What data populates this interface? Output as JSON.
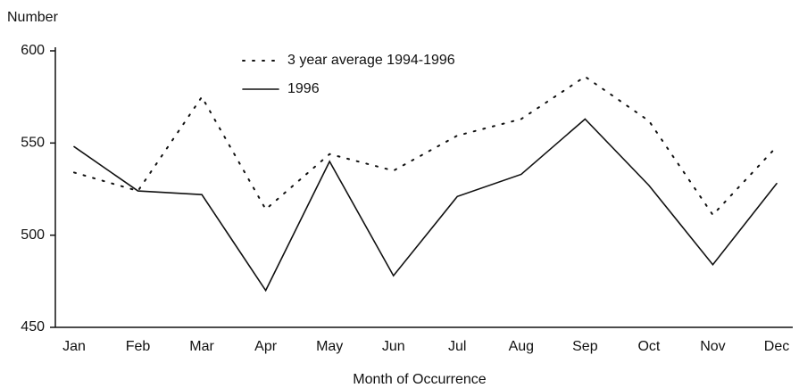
{
  "chart_data": {
    "type": "line",
    "y_label": "Number",
    "x_label": "Month of Occurrence",
    "categories": [
      "Jan",
      "Feb",
      "Mar",
      "Apr",
      "May",
      "Jun",
      "Jul",
      "Aug",
      "Sep",
      "Oct",
      "Nov",
      "Dec"
    ],
    "series": [
      {
        "name": "3 year average 1994-1996",
        "color": "#111111",
        "line_style": "dotted",
        "values": [
          534,
          524,
          575,
          514,
          544,
          535,
          554,
          563,
          586,
          562,
          511,
          548
        ]
      },
      {
        "name": "1996",
        "color": "#111111",
        "line_style": "solid",
        "values": [
          548,
          524,
          522,
          470,
          540,
          478,
          521,
          533,
          563,
          527,
          484,
          528
        ]
      }
    ],
    "ylim": [
      450,
      600
    ],
    "yticks": [
      450,
      500,
      550,
      600
    ],
    "grid": false
  }
}
